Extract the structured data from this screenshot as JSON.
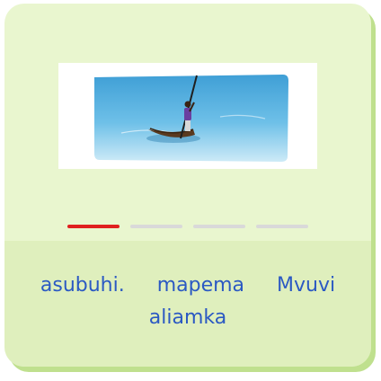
{
  "colors": {
    "card_background": "#e9f6cf",
    "card_bottom": "#dfefbd",
    "card_shadow": "#bfe08e",
    "progress_active": "#e02020",
    "progress_inactive": "#d9d9d9",
    "word_text": "#2b59c3",
    "sea": "#4fa9d9"
  },
  "illustration": {
    "icon": "fisherman-canoe-illustration"
  },
  "progress": {
    "total": 4,
    "current": 1
  },
  "sentence": {
    "words": [
      "asubuhi.",
      "mapema",
      "Mvuvi",
      "aliamka"
    ]
  }
}
